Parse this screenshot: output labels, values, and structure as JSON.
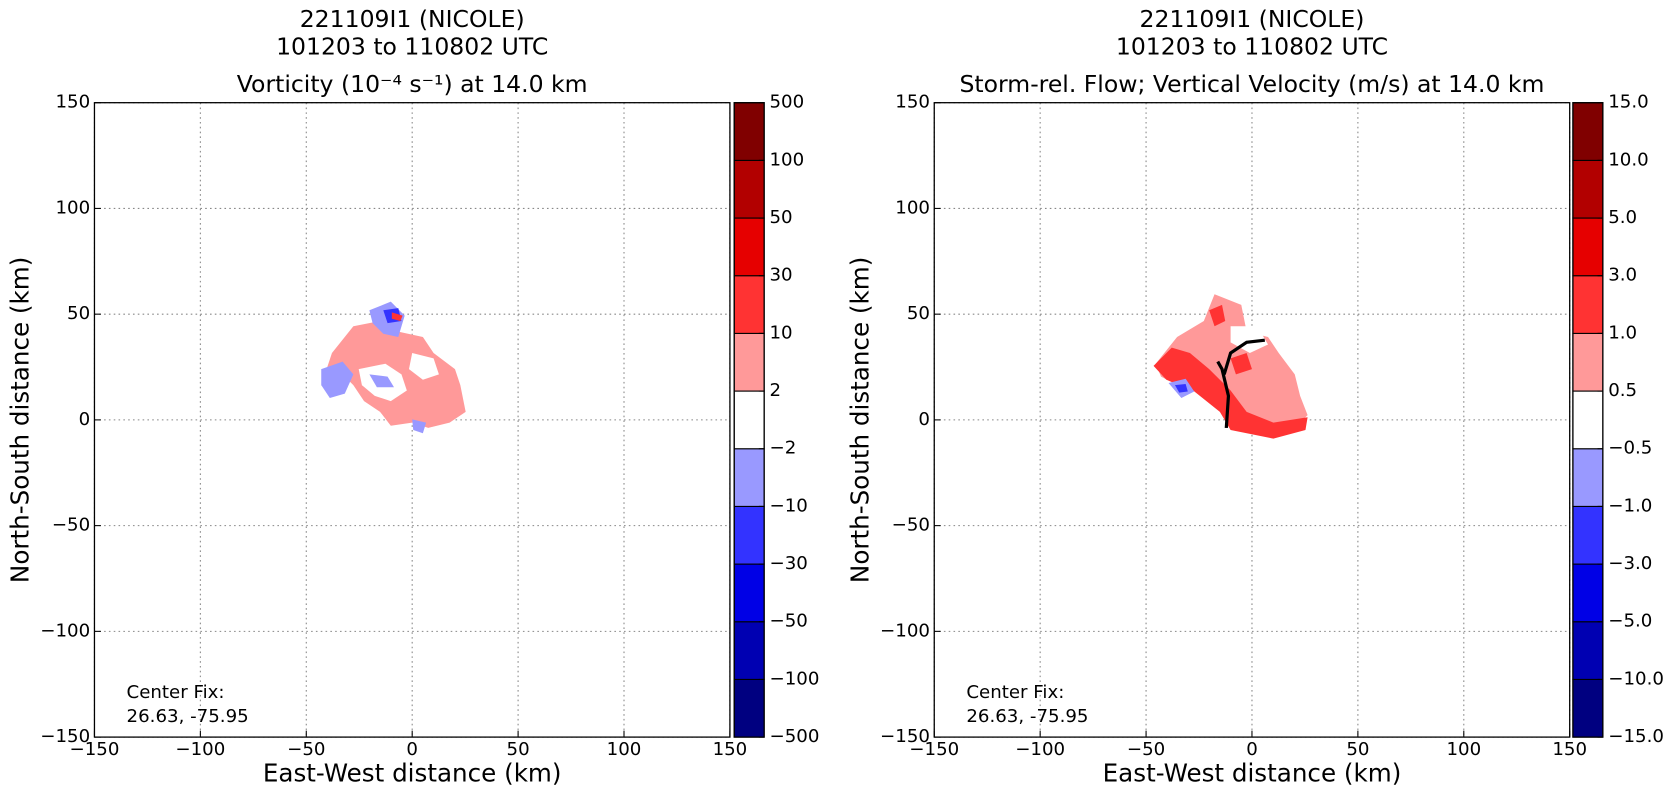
{
  "chart_data": [
    {
      "type": "contour",
      "title": [
        "221109I1 (NICOLE)",
        "101203 to 110802 UTC",
        "Vorticity (10⁻⁴ s⁻¹) at 14.0 km"
      ],
      "xlabel": "East-West distance (km)",
      "ylabel": "North-South distance (km)",
      "xlim": [
        -150,
        150
      ],
      "ylim": [
        -150,
        150
      ],
      "xticks": [
        {
          "value": -150,
          "label": "−150"
        },
        {
          "value": -100,
          "label": "−100"
        },
        {
          "value": -50,
          "label": "−50"
        },
        0,
        50,
        100,
        150
      ],
      "yticks": [
        {
          "value": -150,
          "label": "−150"
        },
        {
          "value": -100,
          "label": "−100"
        },
        {
          "value": -50,
          "label": "−50"
        },
        0,
        50,
        100,
        150
      ],
      "grid": true,
      "annotation": [
        "Center Fix:",
        "26.63, -75.95"
      ],
      "colorbar": {
        "levels": [
          {
            "value": -500,
            "label": "−500"
          },
          {
            "value": -100,
            "label": "−100"
          },
          {
            "value": -50,
            "label": "−50"
          },
          {
            "value": -30,
            "label": "−30"
          },
          {
            "value": -10,
            "label": "−10"
          },
          {
            "value": -2,
            "label": "−2"
          },
          2,
          10,
          30,
          50,
          100,
          500
        ],
        "colors": [
          "#000080",
          "#0000b2",
          "#0000e6",
          "#3333ff",
          "#9999ff",
          "#ffffff",
          "#ff9999",
          "#ff3333",
          "#e60000",
          "#b20000",
          "#800000"
        ]
      }
    },
    {
      "type": "contour",
      "title": [
        "221109I1 (NICOLE)",
        "101203 to 110802 UTC",
        "Storm-rel. Flow; Vertical Velocity (m/s) at 14.0 km"
      ],
      "xlabel": "East-West distance (km)",
      "ylabel": "North-South distance (km)",
      "xlim": [
        -150,
        150
      ],
      "ylim": [
        -150,
        150
      ],
      "xticks": [
        {
          "value": -150,
          "label": "−150"
        },
        {
          "value": -100,
          "label": "−100"
        },
        {
          "value": -50,
          "label": "−50"
        },
        0,
        50,
        100,
        150
      ],
      "yticks": [
        {
          "value": -150,
          "label": "−150"
        },
        {
          "value": -100,
          "label": "−100"
        },
        {
          "value": -50,
          "label": "−50"
        },
        0,
        50,
        100,
        150
      ],
      "grid": true,
      "annotation": [
        "Center Fix:",
        "26.63, -75.95"
      ],
      "colorbar": {
        "levels": [
          {
            "value": -15,
            "label": "−15.0"
          },
          {
            "value": -10,
            "label": "−10.0"
          },
          {
            "value": -5,
            "label": "−5.0"
          },
          {
            "value": -3,
            "label": "−3.0"
          },
          {
            "value": -1,
            "label": "−1.0"
          },
          {
            "value": -0.5,
            "label": "−0.5"
          },
          0.5,
          {
            "value": 1,
            "label": "1.0"
          },
          {
            "value": 3,
            "label": "3.0"
          },
          {
            "value": 5,
            "label": "5.0"
          },
          {
            "value": 10,
            "label": "10.0"
          },
          {
            "value": 15,
            "label": "15.0"
          }
        ],
        "colors": [
          "#000080",
          "#0000b2",
          "#0000e6",
          "#3333ff",
          "#9999ff",
          "#ffffff",
          "#ff9999",
          "#ff3333",
          "#e60000",
          "#b20000",
          "#800000"
        ]
      }
    }
  ]
}
